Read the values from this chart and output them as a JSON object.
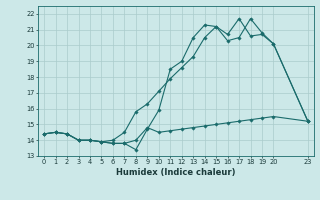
{
  "xlabel": "Humidex (Indice chaleur)",
  "bg_color": "#cce8e8",
  "line_color": "#1a6b6b",
  "grid_color": "#aacccc",
  "xlim": [
    -0.5,
    23.5
  ],
  "ylim": [
    13.0,
    22.5
  ],
  "xticks": [
    0,
    1,
    2,
    3,
    4,
    5,
    6,
    7,
    8,
    9,
    10,
    11,
    12,
    13,
    14,
    15,
    16,
    17,
    18,
    19,
    20,
    23
  ],
  "yticks": [
    13,
    14,
    15,
    16,
    17,
    18,
    19,
    20,
    21,
    22
  ],
  "line1_x": [
    0,
    1,
    2,
    3,
    4,
    5,
    6,
    7,
    8,
    9,
    10,
    11,
    12,
    13,
    14,
    15,
    16,
    17,
    18,
    19,
    20,
    23
  ],
  "line1_y": [
    14.4,
    14.5,
    14.4,
    14.0,
    14.0,
    13.9,
    13.8,
    13.8,
    13.4,
    14.7,
    15.9,
    18.5,
    19.0,
    20.5,
    21.3,
    21.2,
    20.3,
    20.5,
    21.7,
    20.8,
    20.1,
    15.2
  ],
  "line2_x": [
    0,
    1,
    2,
    3,
    4,
    5,
    6,
    7,
    8,
    9,
    10,
    11,
    12,
    13,
    14,
    15,
    16,
    17,
    18,
    19,
    20,
    23
  ],
  "line2_y": [
    14.4,
    14.5,
    14.4,
    14.0,
    14.0,
    13.9,
    14.0,
    14.5,
    15.8,
    16.3,
    17.1,
    17.9,
    18.6,
    19.3,
    20.5,
    21.2,
    20.7,
    21.7,
    20.6,
    20.7,
    20.1,
    15.2
  ],
  "line3_x": [
    0,
    1,
    2,
    3,
    4,
    5,
    6,
    7,
    8,
    9,
    10,
    11,
    12,
    13,
    14,
    15,
    16,
    17,
    18,
    19,
    20,
    23
  ],
  "line3_y": [
    14.4,
    14.5,
    14.4,
    14.0,
    14.0,
    13.9,
    13.8,
    13.8,
    14.0,
    14.8,
    14.5,
    14.6,
    14.7,
    14.8,
    14.9,
    15.0,
    15.1,
    15.2,
    15.3,
    15.4,
    15.5,
    15.2
  ]
}
